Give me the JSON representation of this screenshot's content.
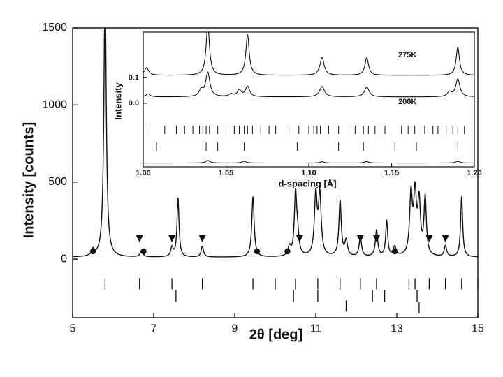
{
  "chart_data": [
    {
      "type": "line",
      "xlabel": "2θ [deg]",
      "ylabel": "Intensity [counts]",
      "xlim": [
        5,
        15
      ],
      "ylim": [
        -380,
        1500
      ],
      "xticks": [
        5,
        7,
        9,
        11,
        13,
        15
      ],
      "yticks": [
        0,
        500,
        1000,
        1500
      ],
      "grid": false,
      "series": [
        {
          "baseline": 12,
          "peaks": [
            {
              "x": 5.5,
              "height": 40,
              "width": 0.04
            },
            {
              "x": 5.8,
              "height": 1750,
              "width": 0.035
            },
            {
              "x": 6.7,
              "height": 40,
              "width": 0.04
            },
            {
              "x": 7.45,
              "height": 60,
              "width": 0.035
            },
            {
              "x": 7.6,
              "height": 380,
              "width": 0.03
            },
            {
              "x": 8.2,
              "height": 70,
              "width": 0.035
            },
            {
              "x": 9.45,
              "height": 390,
              "width": 0.035
            },
            {
              "x": 10.35,
              "height": 60,
              "width": 0.04
            },
            {
              "x": 10.5,
              "height": 390,
              "width": 0.035
            },
            {
              "x": 10.55,
              "height": 120,
              "width": 0.04
            },
            {
              "x": 11.0,
              "height": 390,
              "width": 0.04
            },
            {
              "x": 11.1,
              "height": 385,
              "width": 0.04
            },
            {
              "x": 11.6,
              "height": 360,
              "width": 0.035
            },
            {
              "x": 11.75,
              "height": 100,
              "width": 0.04
            },
            {
              "x": 12.1,
              "height": 130,
              "width": 0.035
            },
            {
              "x": 12.5,
              "height": 170,
              "width": 0.035
            },
            {
              "x": 12.75,
              "height": 230,
              "width": 0.03
            },
            {
              "x": 12.95,
              "height": 60,
              "width": 0.04
            },
            {
              "x": 13.35,
              "height": 390,
              "width": 0.04
            },
            {
              "x": 13.45,
              "height": 380,
              "width": 0.04
            },
            {
              "x": 13.55,
              "height": 340,
              "width": 0.04
            },
            {
              "x": 13.7,
              "height": 370,
              "width": 0.035
            },
            {
              "x": 14.2,
              "height": 70,
              "width": 0.035
            },
            {
              "x": 14.6,
              "height": 390,
              "width": 0.03
            }
          ]
        }
      ],
      "markers": {
        "circle": [
          5.5,
          6.75,
          9.55,
          10.3,
          12.95
        ],
        "triangle": [
          6.65,
          7.45,
          8.2,
          10.6,
          12.1,
          12.5,
          13.8,
          14.2
        ],
        "marker_y": 150
      },
      "reflection_ticks": {
        "row1": {
          "y": -160,
          "positions": [
            5.8,
            6.65,
            7.45,
            8.2,
            9.45,
            10.0,
            10.5,
            11.05,
            11.6,
            12.1,
            12.5,
            13.3,
            13.45,
            13.8,
            14.2,
            14.6,
            15.0
          ]
        },
        "row2": {
          "y": -240,
          "positions": [
            7.55,
            10.45,
            11.05,
            12.4,
            12.7,
            13.5
          ]
        },
        "row3": {
          "y": -305,
          "positions": [
            11.75
          ]
        },
        "row4": {
          "y": -315,
          "positions": [
            13.55
          ]
        }
      }
    },
    {
      "type": "line",
      "xlabel": "d-spacing [Å]",
      "ylabel": "Intensity",
      "xlim": [
        1.0,
        1.2
      ],
      "ylim": [
        -0.25,
        0.28
      ],
      "xticks": [
        "1.00",
        "1.05",
        "1.10",
        "1.15",
        "1.20"
      ],
      "yticks": [
        "0.0",
        "0.1"
      ],
      "grid": false,
      "series": [
        {
          "name": "275K",
          "baseline": 0.11,
          "peaks": [
            {
              "x": 1.002,
              "height": 0.03,
              "width": 0.0015
            },
            {
              "x": 1.039,
              "height": 0.2,
              "width": 0.0012
            },
            {
              "x": 1.063,
              "height": 0.16,
              "width": 0.0012
            },
            {
              "x": 1.108,
              "height": 0.07,
              "width": 0.0015
            },
            {
              "x": 1.135,
              "height": 0.07,
              "width": 0.0013
            },
            {
              "x": 1.19,
              "height": 0.11,
              "width": 0.0012
            }
          ]
        },
        {
          "name": "200K",
          "baseline": 0.025,
          "peaks": [
            {
              "x": 1.003,
              "height": 0.012,
              "width": 0.0015
            },
            {
              "x": 1.035,
              "height": 0.025,
              "width": 0.0015
            },
            {
              "x": 1.039,
              "height": 0.095,
              "width": 0.0015
            },
            {
              "x": 1.053,
              "height": 0.01,
              "width": 0.0015
            },
            {
              "x": 1.058,
              "height": 0.025,
              "width": 0.0015
            },
            {
              "x": 1.063,
              "height": 0.04,
              "width": 0.0015
            },
            {
              "x": 1.108,
              "height": 0.04,
              "width": 0.0018
            },
            {
              "x": 1.135,
              "height": 0.038,
              "width": 0.0017
            },
            {
              "x": 1.185,
              "height": 0.018,
              "width": 0.0015
            },
            {
              "x": 1.19,
              "height": 0.07,
              "width": 0.0015
            }
          ]
        },
        {
          "baseline": -0.235,
          "peaks": [
            {
              "x": 1.039,
              "height": 0.01,
              "width": 0.0015
            },
            {
              "x": 1.061,
              "height": 0.007,
              "width": 0.0015
            },
            {
              "x": 1.108,
              "height": 0.005,
              "width": 0.0015
            },
            {
              "x": 1.135,
              "height": 0.006,
              "width": 0.0015
            },
            {
              "x": 1.19,
              "height": 0.007,
              "width": 0.0015
            }
          ]
        }
      ],
      "reflection_ticks": {
        "row1": {
          "y": -0.105,
          "positions": [
            1.004,
            1.013,
            1.02,
            1.025,
            1.03,
            1.034,
            1.036,
            1.038,
            1.04,
            1.045,
            1.05,
            1.055,
            1.058,
            1.061,
            1.063,
            1.066,
            1.071,
            1.076,
            1.08,
            1.088,
            1.094,
            1.1,
            1.103,
            1.105,
            1.107,
            1.112,
            1.118,
            1.123,
            1.128,
            1.133,
            1.136,
            1.14,
            1.146,
            1.156,
            1.16,
            1.164,
            1.17,
            1.175,
            1.178,
            1.183,
            1.187,
            1.19,
            1.194
          ]
        },
        "row2": {
          "y": -0.17,
          "positions": [
            1.0,
            1.008,
            1.038,
            1.045,
            1.061,
            1.093,
            1.118,
            1.133,
            1.152,
            1.165,
            1.19
          ]
        }
      }
    }
  ]
}
